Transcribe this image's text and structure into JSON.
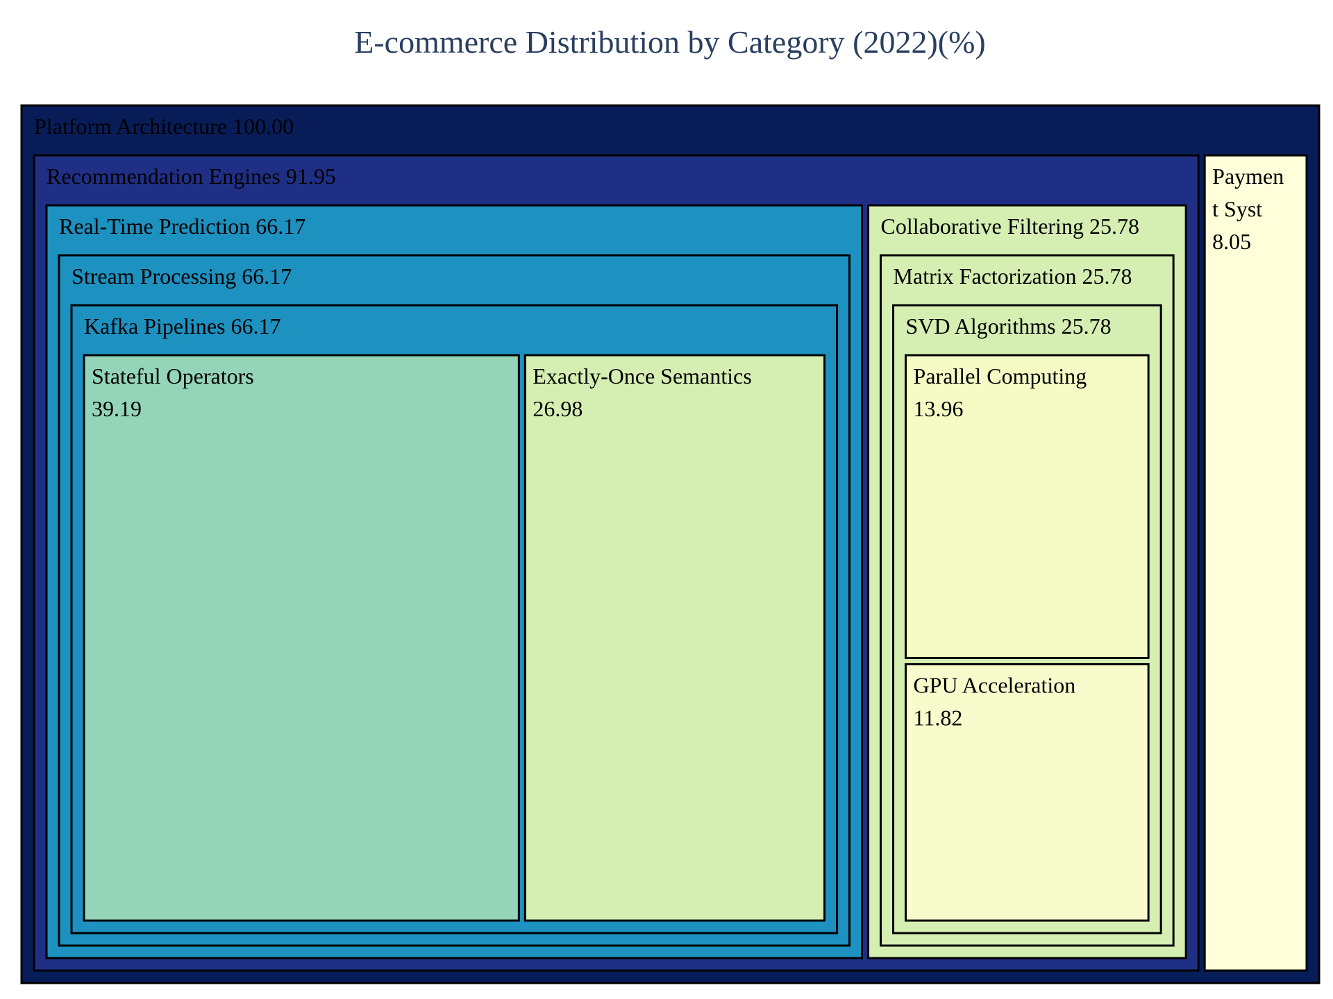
{
  "chart_data": {
    "type": "treemap",
    "title": "E-commerce Distribution by Category (2022)(%)",
    "colors": {
      "title": "#2a3f5f",
      "border": "#000000",
      "text_dark_bg": "#000000"
    },
    "root": {
      "name": "Platform Architecture",
      "value": 100.0,
      "value_label": "100.00",
      "color": "#081d58",
      "children": [
        {
          "name": "Recommendation Engines",
          "value": 91.95,
          "value_label": "91.95",
          "color": "#1f2f86",
          "children": [
            {
              "name": "Real-Time Prediction",
              "value": 66.17,
              "value_label": "66.17",
              "color": "#1d91c0",
              "children": [
                {
                  "name": "Stream Processing",
                  "value": 66.17,
                  "value_label": "66.17",
                  "color": "#1d91c0",
                  "children": [
                    {
                      "name": "Kafka Pipelines",
                      "value": 66.17,
                      "value_label": "66.17",
                      "color": "#1d91c0",
                      "children": [
                        {
                          "name": "Stateful Operators",
                          "value": 39.19,
                          "value_label": "39.19",
                          "color": "#94d4b9"
                        },
                        {
                          "name": "Exactly-Once Semantics",
                          "value": 26.98,
                          "value_label": "26.98",
                          "color": "#d5efb3"
                        }
                      ]
                    }
                  ]
                }
              ]
            },
            {
              "name": "Collaborative Filtering",
              "value": 25.78,
              "value_label": "25.78",
              "color": "#d5efb3",
              "children": [
                {
                  "name": "Matrix Factorization",
                  "value": 25.78,
                  "value_label": "25.78",
                  "color": "#d5efb3",
                  "children": [
                    {
                      "name": "SVD Algorithms",
                      "value": 25.78,
                      "value_label": "25.78",
                      "color": "#d5efb3",
                      "children": [
                        {
                          "name": "Parallel Computing",
                          "value": 13.96,
                          "value_label": "13.96",
                          "color": "#f4fbc5"
                        },
                        {
                          "name": "GPU Acceleration",
                          "value": 11.82,
                          "value_label": "11.82",
                          "color": "#f8fccc"
                        }
                      ]
                    }
                  ]
                }
              ]
            }
          ]
        },
        {
          "name": "Payment Systems",
          "display_lines": [
            "Paymen",
            "t Syst",
            "8.05"
          ],
          "value": 8.05,
          "value_label": "8.05",
          "color": "#ffffd9"
        }
      ]
    }
  }
}
